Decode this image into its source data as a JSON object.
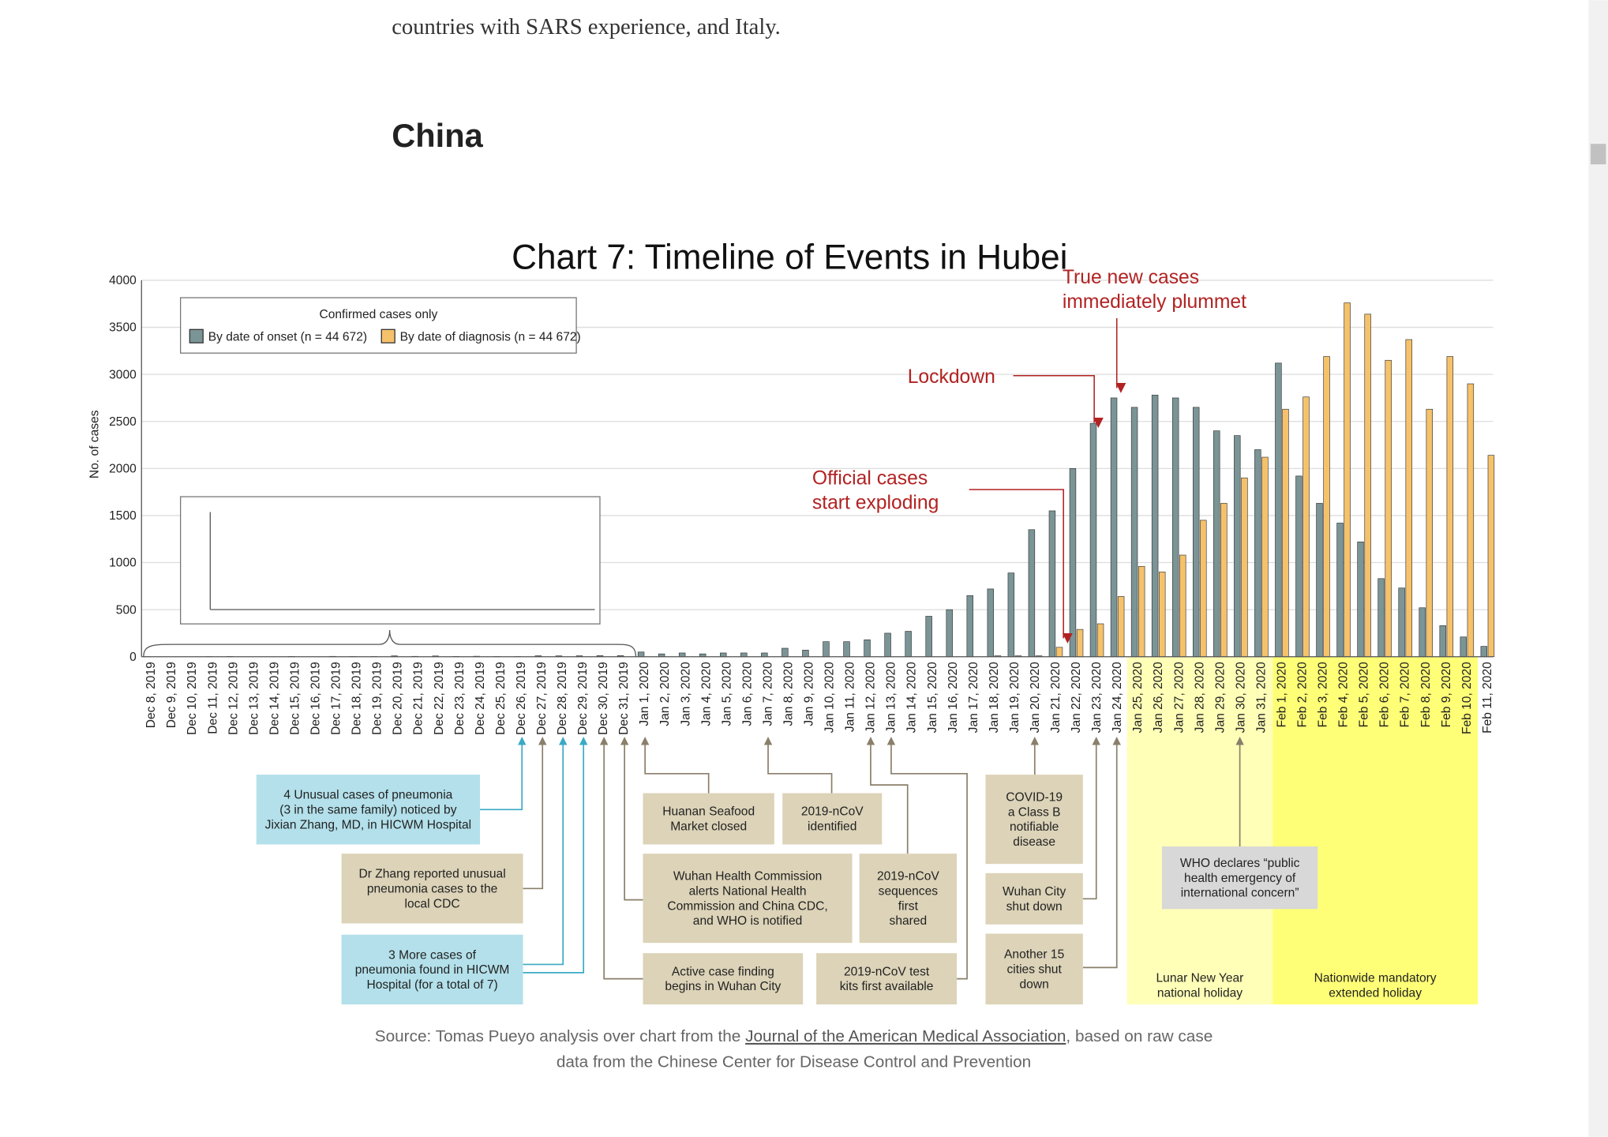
{
  "article": {
    "text_line": "countries with SARS experience, and Italy.",
    "heading": "China"
  },
  "chart_data": {
    "type": "bar",
    "title": "Chart 7: Timeline of Events in Hubei",
    "y_label": "No. of cases",
    "legend_title": "Confirmed cases only",
    "categories": [
      "Dec 8, 2019",
      "Dec 9, 2019",
      "Dec 10, 2019",
      "Dec 11, 2019",
      "Dec 12, 2019",
      "Dec 13, 2019",
      "Dec 14, 2019",
      "Dec 15, 2019",
      "Dec 16, 2019",
      "Dec 17, 2019",
      "Dec 18, 2019",
      "Dec 19, 2019",
      "Dec 20, 2019",
      "Dec 21, 2019",
      "Dec 22, 2019",
      "Dec 23, 2019",
      "Dec 24, 2019",
      "Dec 25, 2019",
      "Dec 26, 2019",
      "Dec 27, 2019",
      "Dec 28, 2019",
      "Dec 29, 2019",
      "Dec 30, 2019",
      "Dec 31, 2019",
      "Jan 1, 2020",
      "Jan 2, 2020",
      "Jan 3, 2020",
      "Jan 4, 2020",
      "Jan 5, 2020",
      "Jan 6, 2020",
      "Jan 7, 2020",
      "Jan 8, 2020",
      "Jan 9, 2020",
      "Jan 10, 2020",
      "Jan 11, 2020",
      "Jan 12, 2020",
      "Jan 13, 2020",
      "Jan 14, 2020",
      "Jan 15, 2020",
      "Jan 16, 2020",
      "Jan 17, 2020",
      "Jan 18, 2020",
      "Jan 19, 2020",
      "Jan 20, 2020",
      "Jan 21, 2020",
      "Jan 22, 2020",
      "Jan 23, 2020",
      "Jan 24, 2020",
      "Jan 25, 2020",
      "Jan 26, 2020",
      "Jan 27, 2020",
      "Jan 28, 2020",
      "Jan 29, 2020",
      "Jan 30, 2020",
      "Jan 31, 2020",
      "Feb 1, 2020",
      "Feb 2, 2020",
      "Feb 3, 2020",
      "Feb 4, 2020",
      "Feb 5, 2020",
      "Feb 6, 2020",
      "Feb 7, 2020",
      "Feb 8, 2020",
      "Feb 9, 2020",
      "Feb 10, 2020",
      "Feb 11, 2020"
    ],
    "series": [
      {
        "name": "By date of onset (n = 44 672)",
        "color": "#7b9597",
        "values": [
          1,
          0,
          0,
          1,
          3,
          0,
          0,
          3,
          0,
          4,
          2,
          2,
          9,
          4,
          8,
          3,
          5,
          2,
          2,
          10,
          9,
          10,
          12,
          12,
          50,
          30,
          40,
          30,
          40,
          40,
          40,
          90,
          70,
          160,
          160,
          180,
          250,
          270,
          430,
          500,
          650,
          720,
          890,
          1350,
          1550,
          2000,
          2480,
          2750,
          2650,
          2780,
          2750,
          2650,
          2400,
          2350,
          2200,
          3120,
          1920,
          1630,
          1420,
          1220,
          830,
          730,
          520,
          330,
          210,
          110
        ]
      },
      {
        "name": "By date of diagnosis (n = 44 672)",
        "color": "#f5c26b",
        "values": [
          0,
          0,
          0,
          0,
          0,
          0,
          0,
          0,
          0,
          0,
          0,
          0,
          0,
          0,
          0,
          0,
          0,
          0,
          0,
          0,
          0,
          0,
          0,
          0,
          0,
          0,
          0,
          0,
          0,
          0,
          0,
          0,
          0,
          0,
          0,
          0,
          0,
          0,
          0,
          0,
          0,
          10,
          10,
          10,
          100,
          290,
          350,
          640,
          960,
          900,
          1080,
          1450,
          1630,
          1900,
          2120,
          2630,
          2760,
          3190,
          3760,
          3640,
          3150,
          3370,
          2630,
          3190,
          2900,
          2140
        ]
      }
    ],
    "ylim": [
      0,
      4000
    ],
    "yticks": [
      0,
      500,
      1000,
      1500,
      2000,
      2500,
      3000,
      3500,
      4000
    ],
    "grid": true,
    "inset": {
      "ylim": [
        0,
        15
      ],
      "yticks": [
        0,
        5,
        10,
        15
      ]
    },
    "annotations": [
      {
        "lines": [
          "True new cases",
          "immediately plummet"
        ]
      },
      {
        "lines": [
          "Lockdown"
        ]
      },
      {
        "lines": [
          "Official cases",
          "start exploding"
        ]
      }
    ],
    "events": [
      {
        "lines": [
          "4 Unusual cases of pneumonia",
          "(3 in the same family) noticed by",
          "Jixian Zhang, MD, in HICWM Hospital"
        ]
      },
      {
        "lines": [
          "Dr Zhang reported unusual",
          "pneumonia cases to the",
          "local CDC"
        ]
      },
      {
        "lines": [
          "3 More cases of",
          "pneumonia found in HICWM",
          "Hospital (for a total of 7)"
        ]
      },
      {
        "lines": [
          "Huanan Seafood",
          "Market closed"
        ]
      },
      {
        "lines": [
          "2019-nCoV",
          "identified"
        ]
      },
      {
        "lines": [
          "Wuhan Health Commission",
          "alerts National Health",
          "Commission and China CDC,",
          "and WHO is notified"
        ]
      },
      {
        "lines": [
          "2019-nCoV",
          "sequences",
          "first",
          "shared"
        ]
      },
      {
        "lines": [
          "Active case finding",
          "begins in Wuhan City"
        ]
      },
      {
        "lines": [
          "2019-nCoV test",
          "kits first available"
        ]
      },
      {
        "lines": [
          "COVID-19",
          "a Class B",
          "notifiable",
          "disease"
        ]
      },
      {
        "lines": [
          "Wuhan City",
          "shut down"
        ]
      },
      {
        "lines": [
          "Another 15",
          "cities shut",
          "down"
        ]
      },
      {
        "lines": [
          "WHO declares “public",
          "health emergency of",
          "international concern”"
        ]
      }
    ],
    "holidays": [
      {
        "lines": [
          "Lunar New Year",
          "national holiday"
        ]
      },
      {
        "lines": [
          "Nationwide mandatory",
          "extended holiday"
        ]
      }
    ]
  },
  "source": {
    "before": "Source: Tomas Pueyo analysis over chart from the ",
    "link": "Journal of the American Medical Association",
    "after": ", based on raw case",
    "line2": "data from the Chinese Center for Disease Control and Prevention"
  }
}
